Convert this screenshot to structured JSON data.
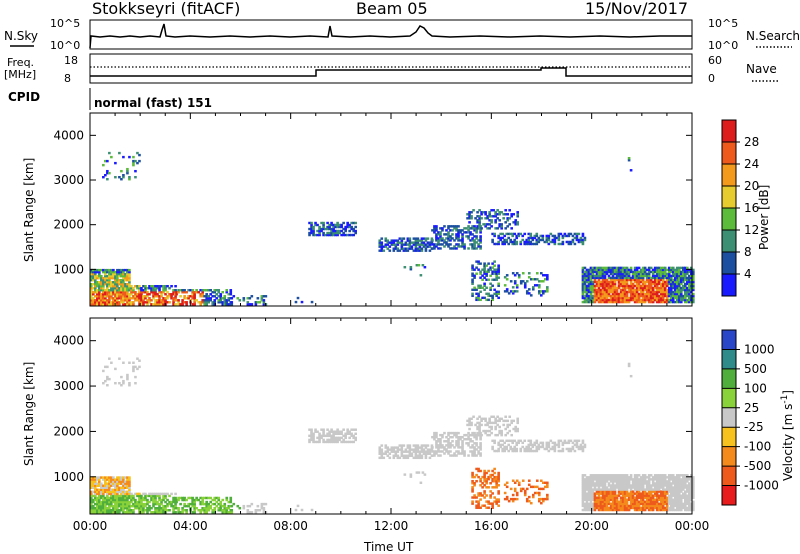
{
  "header": {
    "station": "Stokkseyri (fitACF)",
    "beam": "Beam 05",
    "date": "15/Nov/2017",
    "nsky_label": "N.Sky",
    "nsky_ticks": [
      "10^5",
      "10^0"
    ],
    "nsearch_label": "N.Search",
    "freq_label_1": "Freq.",
    "freq_label_2": "[MHz]",
    "freq_ticks": [
      "18",
      "8"
    ],
    "nave_label": "Nave",
    "nave_ticks": [
      "60",
      "0"
    ],
    "cpid_label": "CPID",
    "cpid_value": "normal (fast) 151"
  },
  "chart_data": [
    {
      "type": "heatmap",
      "name": "power",
      "ylabel": "Slant Range [km]",
      "xlabel": "Time UT",
      "xlim": [
        "00:00",
        "24:00"
      ],
      "ylim": [
        180,
        4500
      ],
      "yticks": [
        "1000",
        "2000",
        "3000",
        "4000"
      ],
      "xticks": [
        "00:00",
        "04:00",
        "08:00",
        "12:00",
        "16:00",
        "20:00",
        "00:00"
      ],
      "colorbar_label": "Power [dB]",
      "colorbar_ticks": [
        "4",
        "8",
        "12",
        "16",
        "20",
        "24",
        "28"
      ],
      "colors": [
        "#1a1aff",
        "#1c4fa0",
        "#3d8f73",
        "#5cbb3a",
        "#e6cc2e",
        "#f39a1c",
        "#ee5a1c",
        "#dd1c1c"
      ]
    },
    {
      "type": "heatmap",
      "name": "velocity",
      "ylabel": "Slant Range [km]",
      "xlabel": "Time UT",
      "xlim": [
        "00:00",
        "24:00"
      ],
      "ylim": [
        180,
        4500
      ],
      "yticks": [
        "1000",
        "2000",
        "3000",
        "4000"
      ],
      "xticks": [
        "00:00",
        "04:00",
        "08:00",
        "12:00",
        "16:00",
        "20:00",
        "00:00"
      ],
      "colorbar_label": "Velocity [m s",
      "colorbar_unit_exp": "-1",
      "colorbar_ticks": [
        "1000",
        "500",
        "100",
        "25",
        "-25",
        "-100",
        "-500",
        "-1000"
      ],
      "colors": [
        "#2a46c8",
        "#2f8a8a",
        "#4fae3c",
        "#8ad23a",
        "#c8c8c8",
        "#f7c21e",
        "#f58a1c",
        "#ee5a1c",
        "#e81c1c"
      ]
    }
  ]
}
